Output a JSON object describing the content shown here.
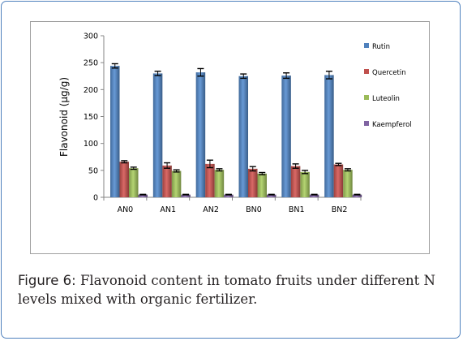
{
  "chart_data": {
    "type": "bar",
    "title": "",
    "xlabel": "",
    "ylabel": "Flavonoid (μg/g)",
    "ylim": [
      0,
      300
    ],
    "yticks": [
      "0",
      "50",
      "100",
      "150",
      "200",
      "250",
      "300"
    ],
    "grid": false,
    "legend_position": "right",
    "categories": [
      "AN0",
      "AN1",
      "AN2",
      "BN0",
      "BN1",
      "BN2"
    ],
    "series": [
      {
        "name": "Rutin",
        "color": "#4f81bd",
        "values": [
          244,
          230,
          232,
          225,
          226,
          227
        ],
        "errors": [
          4,
          4,
          7,
          4,
          5,
          7
        ]
      },
      {
        "name": "Quercetin",
        "color": "#c0504d",
        "values": [
          66,
          59,
          62,
          53,
          58,
          61
        ],
        "errors": [
          2,
          5,
          7,
          4,
          4,
          2
        ]
      },
      {
        "name": "Luteolin",
        "color": "#9bbb59",
        "values": [
          54,
          49,
          51,
          44,
          47,
          51
        ],
        "errors": [
          2,
          2,
          2,
          2,
          3,
          2
        ]
      },
      {
        "name": "Kaempferol",
        "color": "#8064a2",
        "values": [
          5,
          5,
          5,
          5,
          5,
          5
        ],
        "errors": [
          0.5,
          0.5,
          0.5,
          0.5,
          0.5,
          0.5
        ]
      }
    ]
  },
  "caption": {
    "label": "Figure 6:",
    "text": "Flavonoid content in tomato fruits under different N levels mixed with organic fertilizer."
  }
}
